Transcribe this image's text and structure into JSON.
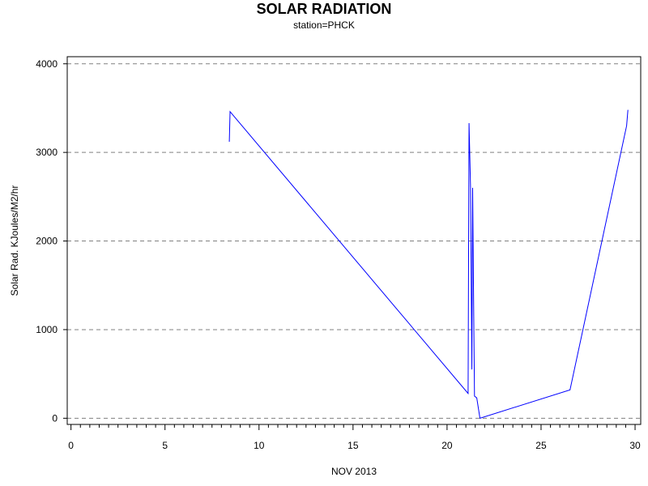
{
  "chart_data": {
    "type": "line",
    "title": "SOLAR RADIATION",
    "subtitle": "station=PHCK",
    "xlabel": "NOV 2013",
    "ylabel": "Solar Rad. KJoules/M2/hr",
    "xlim": [
      -0.2,
      30.3
    ],
    "ylim": [
      -70,
      4080
    ],
    "x_ticks": [
      0,
      5,
      10,
      15,
      20,
      25,
      30
    ],
    "y_ticks": [
      0,
      1000,
      2000,
      3000,
      4000
    ],
    "x_minor_step": 0.5,
    "grid": "horizontal-dashed",
    "line_color": "#0000ff",
    "grid_color": "#808080",
    "series": [
      {
        "points": [
          [
            8.42,
            3120
          ],
          [
            8.46,
            3460
          ],
          [
            21.12,
            280
          ],
          [
            21.17,
            3330
          ],
          [
            21.25,
            2600
          ],
          [
            21.32,
            550
          ],
          [
            21.36,
            2600
          ],
          [
            21.42,
            1150
          ],
          [
            21.46,
            250
          ],
          [
            21.58,
            230
          ],
          [
            21.75,
            0
          ],
          [
            26.54,
            320
          ],
          [
            29.55,
            3300
          ],
          [
            29.62,
            3480
          ]
        ]
      }
    ]
  }
}
